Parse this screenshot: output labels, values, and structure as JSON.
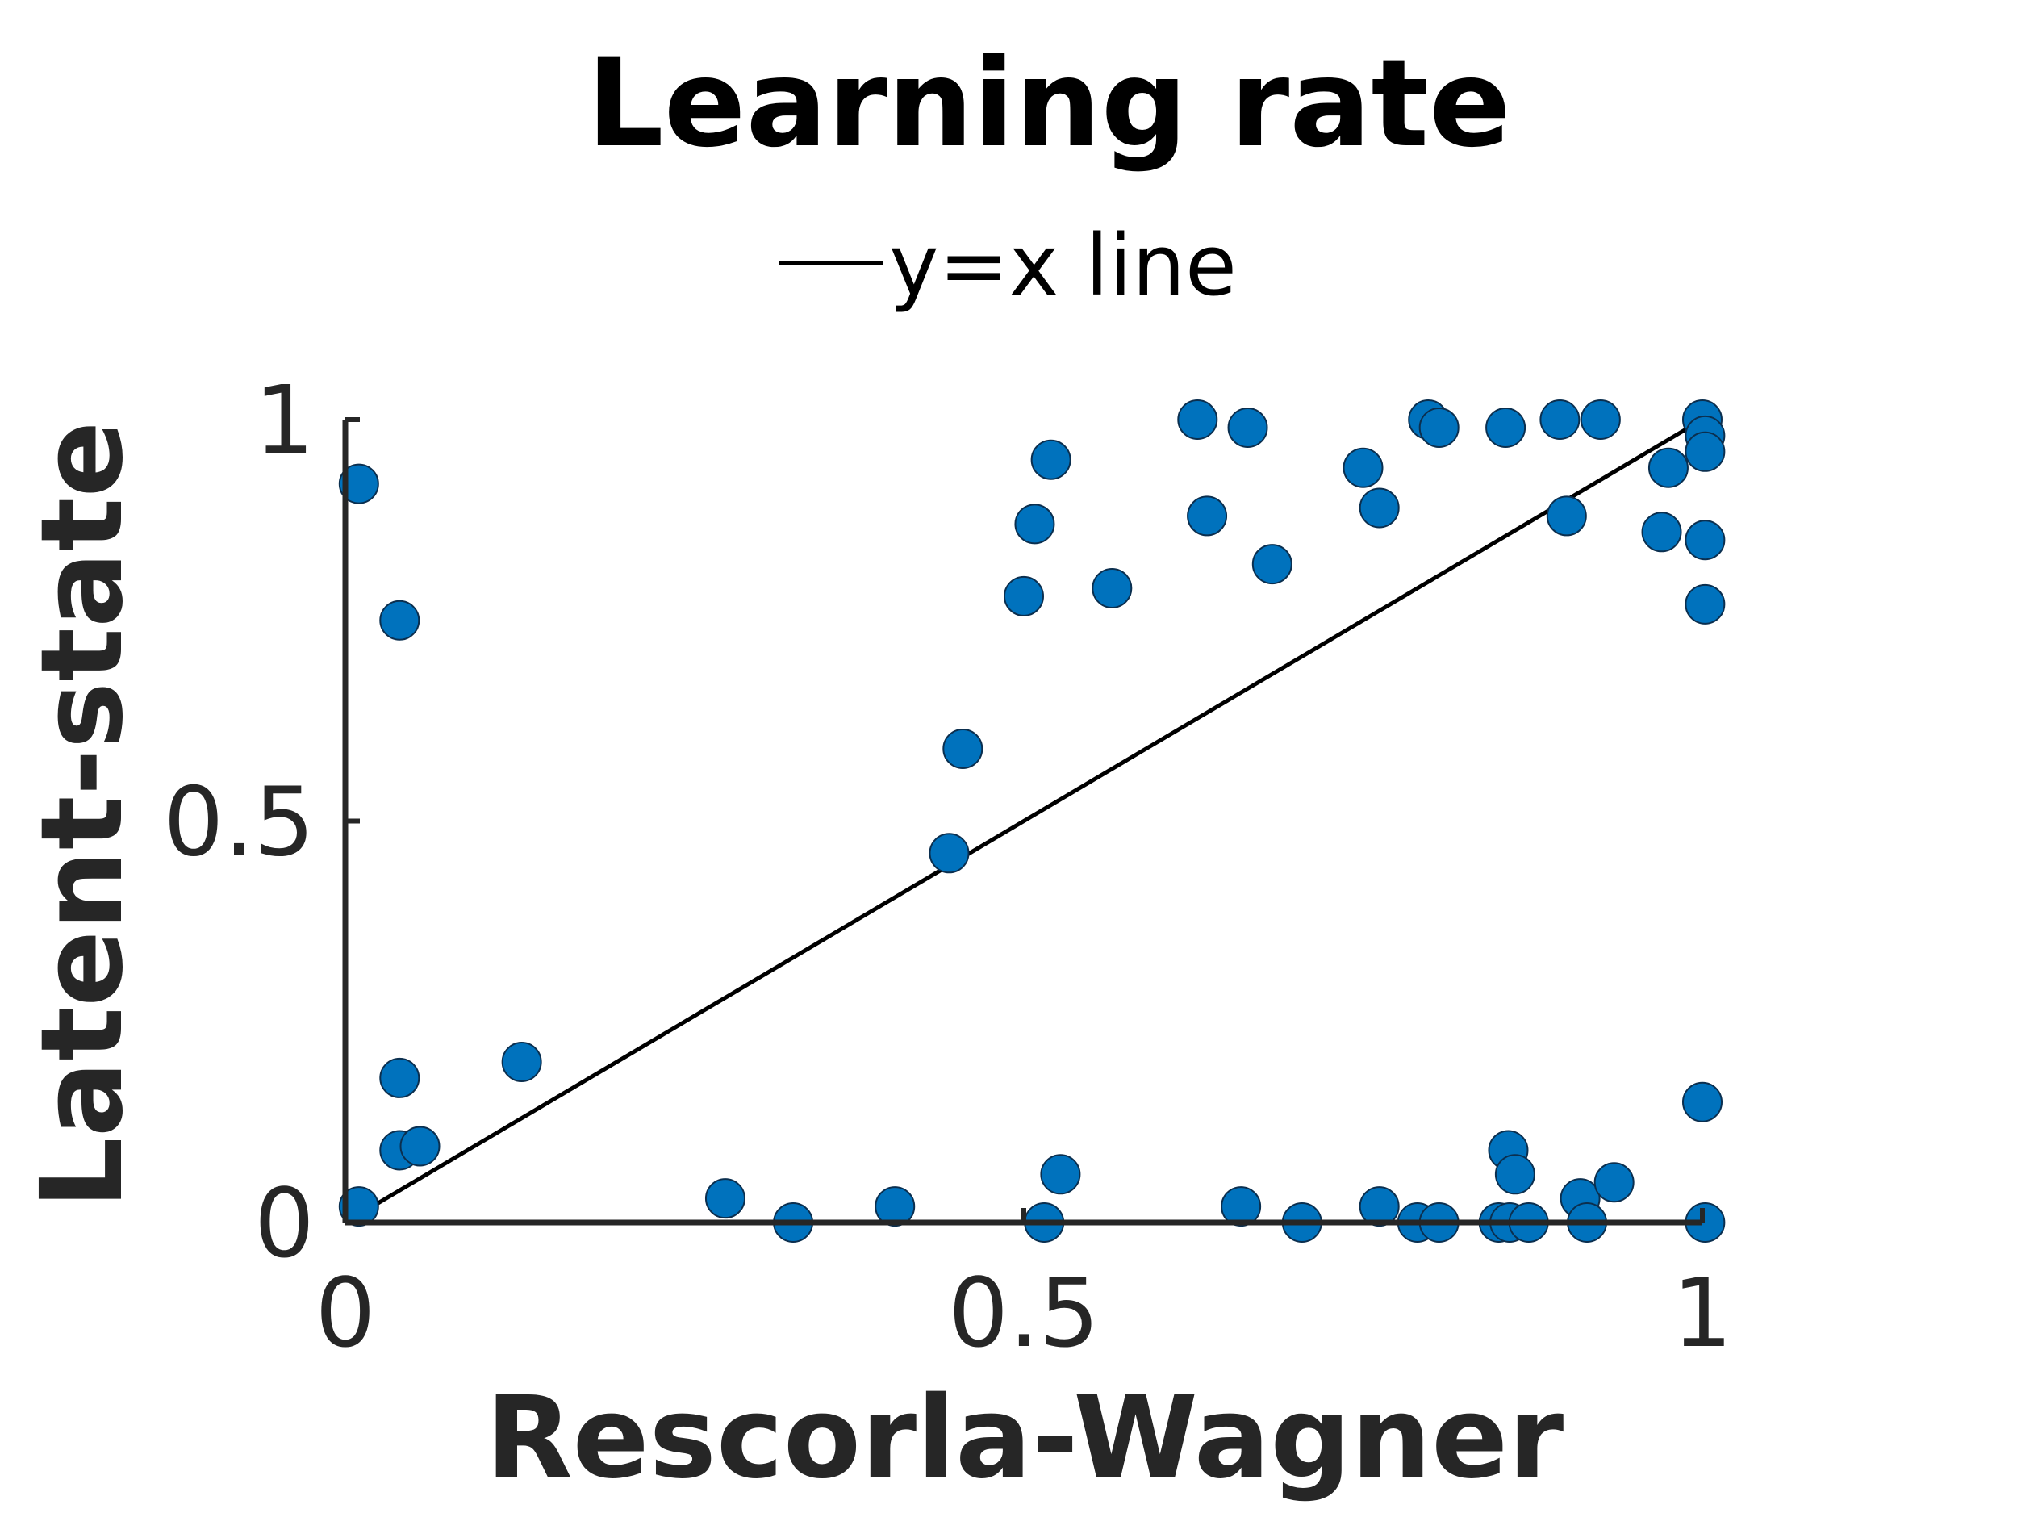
{
  "chart_data": {
    "type": "scatter",
    "title": "Learning rate",
    "xlabel": "Rescorla-Wagner",
    "ylabel": "Latent-state",
    "xlim": [
      0,
      1
    ],
    "ylim": [
      0,
      1
    ],
    "xticks": [
      0,
      0.5,
      1
    ],
    "xtick_labels": [
      "0",
      "0.5",
      "1"
    ],
    "yticks": [
      0,
      0.5,
      1
    ],
    "ytick_labels": [
      "0",
      "0.5",
      "1"
    ],
    "grid": false,
    "legend": {
      "position": "top-center",
      "entries": [
        "y=x line"
      ]
    },
    "colors": {
      "points": "#0072BD",
      "point_edge": "#0b2f4f",
      "line": "#000000",
      "axis": "#262626"
    },
    "reference_line": {
      "name": "y=x line",
      "x": [
        0,
        1
      ],
      "y": [
        0,
        1
      ]
    },
    "points": [
      [
        0.01,
        0.92
      ],
      [
        0.04,
        0.75
      ],
      [
        0.04,
        0.18
      ],
      [
        0.04,
        0.09
      ],
      [
        0.055,
        0.095
      ],
      [
        0.13,
        0.2
      ],
      [
        0.01,
        0.02
      ],
      [
        0.28,
        0.03
      ],
      [
        0.33,
        0.0
      ],
      [
        0.405,
        0.02
      ],
      [
        0.445,
        0.46
      ],
      [
        0.455,
        0.59
      ],
      [
        0.5,
        0.78
      ],
      [
        0.508,
        0.87
      ],
      [
        0.52,
        0.95
      ],
      [
        0.515,
        0.0
      ],
      [
        0.527,
        0.06
      ],
      [
        0.565,
        0.79
      ],
      [
        0.628,
        1.0
      ],
      [
        0.635,
        0.88
      ],
      [
        0.665,
        0.99
      ],
      [
        0.66,
        0.02
      ],
      [
        0.683,
        0.82
      ],
      [
        0.705,
        0.0
      ],
      [
        0.75,
        0.94
      ],
      [
        0.762,
        0.89
      ],
      [
        0.762,
        0.02
      ],
      [
        0.79,
        0.0
      ],
      [
        0.798,
        1.0
      ],
      [
        0.806,
        0.99
      ],
      [
        0.806,
        0.0
      ],
      [
        0.85,
        0.0
      ],
      [
        0.858,
        0.0
      ],
      [
        0.855,
        0.99
      ],
      [
        0.857,
        0.09
      ],
      [
        0.862,
        0.06
      ],
      [
        0.872,
        0.0
      ],
      [
        0.895,
        1.0
      ],
      [
        0.9,
        0.88
      ],
      [
        0.91,
        0.03
      ],
      [
        0.915,
        0.0
      ],
      [
        0.925,
        1.0
      ],
      [
        0.935,
        0.05
      ],
      [
        0.97,
        0.86
      ],
      [
        0.975,
        0.94
      ],
      [
        1.0,
        1.0
      ],
      [
        1.002,
        0.98
      ],
      [
        1.002,
        0.96
      ],
      [
        1.002,
        0.85
      ],
      [
        1.002,
        0.77
      ],
      [
        1.0,
        0.15
      ],
      [
        1.002,
        0.0
      ]
    ]
  }
}
